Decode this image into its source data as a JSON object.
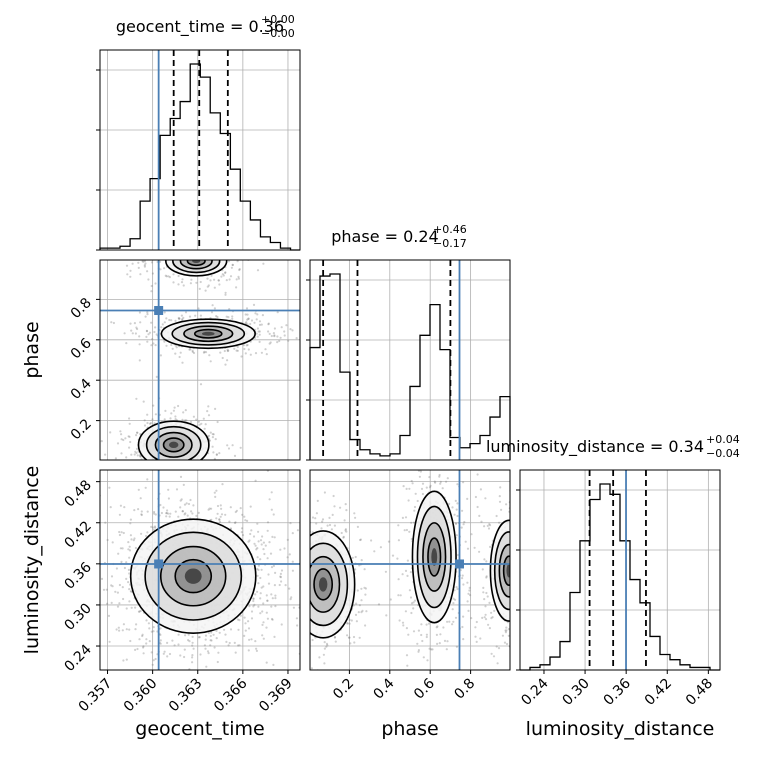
{
  "colors": {
    "truth": "#4a7fb5",
    "line": "#000000",
    "grid": "#b0b0b0",
    "density_dark": "#1a1a1a"
  },
  "chart_data": {
    "type": "corner",
    "parameters": [
      "geocent_time",
      "phase",
      "luminosity_distance"
    ],
    "truths": {
      "geocent_time": 0.3604,
      "phase": 0.745,
      "luminosity_distance": 0.3598
    },
    "ranges": {
      "geocent_time": [
        0.3565,
        0.3698
      ],
      "phase": [
        0.005,
        0.995
      ],
      "luminosity_distance": [
        0.205,
        0.497
      ]
    },
    "ticks": {
      "geocent_time": [
        "0.357",
        "0.360",
        "0.363",
        "0.366",
        "0.369"
      ],
      "phase": [
        "0.2",
        "0.4",
        "0.6",
        "0.8"
      ],
      "luminosity_distance": [
        "0.24",
        "0.30",
        "0.36",
        "0.42",
        "0.48"
      ]
    },
    "axis_labels": {
      "x": [
        "geocent_time",
        "phase",
        "luminosity_distance"
      ],
      "y": [
        "phase",
        "luminosity_distance"
      ]
    },
    "diagonal_titles": [
      {
        "base": "geocent_time = 0.36",
        "plus": "+0.00",
        "minus": "−0.00"
      },
      {
        "base": "phase = 0.24",
        "plus": "+0.46",
        "minus": "−0.17"
      },
      {
        "base": "luminosity_distance = 0.34",
        "plus": "+0.04",
        "minus": "−0.04"
      }
    ],
    "quantiles": {
      "geocent_time": [
        0.3614,
        0.3631,
        0.365
      ],
      "phase": [
        0.07,
        0.24,
        0.7
      ],
      "luminosity_distance": [
        0.3066,
        0.341,
        0.3889
      ]
    },
    "histograms": {
      "geocent_time": {
        "edges": [
          0.3565,
          0.35717,
          0.35783,
          0.3585,
          0.35917,
          0.35983,
          0.3605,
          0.36117,
          0.36183,
          0.3625,
          0.36317,
          0.36383,
          0.3645,
          0.36517,
          0.36583,
          0.3665,
          0.36717,
          0.36783,
          0.3685,
          0.36917,
          0.3698
        ],
        "counts": [
          1,
          1,
          2,
          6,
          26,
          38,
          61,
          70,
          79,
          99,
          92,
          73,
          62,
          43,
          26,
          16,
          7,
          4,
          1,
          0
        ]
      },
      "phase": {
        "edges": [
          0.005,
          0.0545,
          0.104,
          0.1535,
          0.203,
          0.2525,
          0.302,
          0.3515,
          0.401,
          0.4505,
          0.5,
          0.5495,
          0.599,
          0.6485,
          0.698,
          0.7475,
          0.797,
          0.8465,
          0.896,
          0.9455,
          0.995
        ],
        "counts": [
          55,
          90,
          91,
          43,
          10,
          5,
          3,
          2,
          3,
          12,
          36,
          61,
          76,
          54,
          11,
          6,
          8,
          12,
          21,
          31
        ]
      },
      "luminosity_distance": {
        "edges": [
          0.205,
          0.2196,
          0.2342,
          0.2488,
          0.2634,
          0.278,
          0.2926,
          0.3072,
          0.3218,
          0.3364,
          0.351,
          0.3656,
          0.3802,
          0.3948,
          0.4094,
          0.424,
          0.4386,
          0.4532,
          0.4678,
          0.4824,
          0.497
        ],
        "counts": [
          0,
          1,
          2,
          5,
          11,
          30,
          50,
          66,
          72,
          68,
          50,
          35,
          26,
          13,
          6,
          4,
          2,
          1,
          1,
          0
        ]
      }
    },
    "density_modes": {
      "geocent_time_vs_phase": [
        {
          "x": 0.3614,
          "y": 0.08,
          "sx": 0.0009,
          "sy": 0.045,
          "w": 1.0
        },
        {
          "x": 0.3637,
          "y": 0.63,
          "sx": 0.0013,
          "sy": 0.03,
          "w": 0.85
        },
        {
          "x": 0.3629,
          "y": 0.99,
          "sx": 0.0011,
          "sy": 0.04,
          "w": 0.5
        }
      ],
      "geocent_time_vs_luminosity_distance": [
        {
          "x": 0.3627,
          "y": 0.342,
          "sx": 0.0016,
          "sy": 0.032,
          "w": 1.0
        }
      ],
      "phase_vs_luminosity_distance": [
        {
          "x": 0.07,
          "y": 0.33,
          "sx": 0.06,
          "sy": 0.03,
          "w": 1.0
        },
        {
          "x": 0.62,
          "y": 0.37,
          "sx": 0.045,
          "sy": 0.04,
          "w": 0.85
        },
        {
          "x": 0.99,
          "y": 0.35,
          "sx": 0.05,
          "sy": 0.04,
          "w": 0.5
        }
      ]
    },
    "grid": true
  }
}
